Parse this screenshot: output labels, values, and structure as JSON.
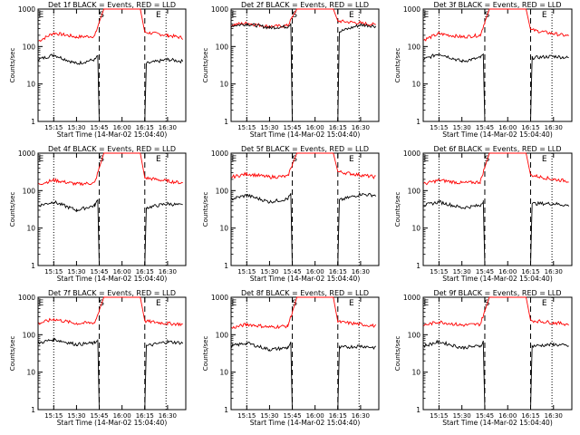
{
  "chart_data": [
    {
      "type": "line",
      "title": "Det 1f BLACK = Events, RED = LLD",
      "xlabel": "Start Time (14-Mar-02 15:04:40)",
      "ylabel": "Counts/sec",
      "yscale": "log",
      "ylim": [
        1,
        1000
      ],
      "y_ticks": [
        "1",
        "10",
        "100",
        "1000"
      ],
      "x_ticks": [
        "15:15",
        "15:30",
        "15:45",
        "16:00",
        "16:15",
        "16:30"
      ],
      "markers": [
        "E",
        "S",
        "E"
      ],
      "series": [
        {
          "color": "#ff0000",
          "x": [
            "15:05",
            "15:15",
            "15:30",
            "15:42",
            "15:45",
            "15:48",
            "16:12",
            "16:15",
            "16:30",
            "16:40"
          ],
          "y": [
            140,
            230,
            180,
            190,
            450,
            1000,
            1000,
            240,
            200,
            170
          ]
        },
        {
          "color": "#000000",
          "x": [
            "15:05",
            "15:15",
            "15:30",
            "15:42",
            "15:44",
            "15:45",
            "16:15",
            "16:16",
            "16:30",
            "16:40"
          ],
          "y": [
            45,
            60,
            35,
            45,
            55,
            1,
            1,
            35,
            45,
            40
          ]
        }
      ]
    },
    {
      "type": "line",
      "title": "Det 2f BLACK = Events, RED = LLD",
      "xlabel": "Start Time (14-Mar-02 15:04:40)",
      "ylabel": "Counts/sec",
      "yscale": "log",
      "ylim": [
        1,
        1000
      ],
      "y_ticks": [
        "1",
        "10",
        "100",
        "1000"
      ],
      "x_ticks": [
        "15:15",
        "15:30",
        "15:45",
        "16:00",
        "16:15",
        "16:30"
      ],
      "markers": [
        "E",
        "S",
        "E"
      ],
      "series": [
        {
          "color": "#ff0000",
          "x": [
            "15:05",
            "15:15",
            "15:30",
            "15:42",
            "15:45",
            "15:48",
            "16:12",
            "16:15",
            "16:30",
            "16:40"
          ],
          "y": [
            380,
            420,
            340,
            360,
            600,
            1000,
            1000,
            480,
            420,
            380
          ]
        },
        {
          "color": "#000000",
          "x": [
            "15:05",
            "15:15",
            "15:30",
            "15:42",
            "15:44",
            "15:45",
            "16:15",
            "16:16",
            "16:30",
            "16:40"
          ],
          "y": [
            360,
            400,
            320,
            340,
            420,
            1,
            1,
            250,
            380,
            350
          ]
        }
      ]
    },
    {
      "type": "line",
      "title": "Det 3f BLACK = Events, RED = LLD",
      "xlabel": "Start Time (14-Mar-02 15:04:40)",
      "ylabel": "Counts/sec",
      "yscale": "log",
      "ylim": [
        1,
        1000
      ],
      "y_ticks": [
        "1",
        "10",
        "100",
        "1000"
      ],
      "x_ticks": [
        "15:15",
        "15:30",
        "15:45",
        "16:00",
        "16:15",
        "16:30"
      ],
      "markers": [
        "E",
        "S",
        "E"
      ],
      "series": [
        {
          "color": "#ff0000",
          "x": [
            "15:05",
            "15:15",
            "15:30",
            "15:42",
            "15:45",
            "15:48",
            "16:12",
            "16:15",
            "16:30",
            "16:40"
          ],
          "y": [
            150,
            220,
            180,
            200,
            450,
            1000,
            1000,
            280,
            220,
            190
          ]
        },
        {
          "color": "#000000",
          "x": [
            "15:05",
            "15:15",
            "15:30",
            "15:42",
            "15:44",
            "15:45",
            "16:15",
            "16:16",
            "16:30",
            "16:40"
          ],
          "y": [
            45,
            65,
            40,
            50,
            60,
            1,
            1,
            50,
            55,
            50
          ]
        }
      ]
    },
    {
      "type": "line",
      "title": "Det 4f BLACK = Events, RED = LLD",
      "xlabel": "Start Time (14-Mar-02 15:04:40)",
      "ylabel": "Counts/sec",
      "yscale": "log",
      "ylim": [
        1,
        1000
      ],
      "y_ticks": [
        "1",
        "10",
        "100",
        "1000"
      ],
      "x_ticks": [
        "15:15",
        "15:30",
        "15:45",
        "16:00",
        "16:15",
        "16:30"
      ],
      "markers": [
        "E",
        "S",
        "E"
      ],
      "series": [
        {
          "color": "#ff0000",
          "x": [
            "15:05",
            "15:15",
            "15:30",
            "15:42",
            "15:45",
            "15:48",
            "16:12",
            "16:15",
            "16:30",
            "16:40"
          ],
          "y": [
            150,
            190,
            150,
            160,
            400,
            1000,
            1000,
            220,
            180,
            160
          ]
        },
        {
          "color": "#000000",
          "x": [
            "15:05",
            "15:15",
            "15:30",
            "15:42",
            "15:44",
            "15:45",
            "16:15",
            "16:16",
            "16:30",
            "16:40"
          ],
          "y": [
            40,
            50,
            30,
            40,
            55,
            1,
            1,
            35,
            45,
            40
          ]
        }
      ]
    },
    {
      "type": "line",
      "title": "Det 5f BLACK = Events, RED = LLD",
      "xlabel": "Start Time (14-Mar-02 15:04:40)",
      "ylabel": "Counts/sec",
      "yscale": "log",
      "ylim": [
        1,
        1000
      ],
      "y_ticks": [
        "1",
        "10",
        "100",
        "1000"
      ],
      "x_ticks": [
        "15:15",
        "15:30",
        "15:45",
        "16:00",
        "16:15",
        "16:30"
      ],
      "markers": [
        "E",
        "S",
        "E"
      ],
      "series": [
        {
          "color": "#ff0000",
          "x": [
            "15:05",
            "15:15",
            "15:30",
            "15:42",
            "15:45",
            "15:48",
            "16:12",
            "16:15",
            "16:30",
            "16:40"
          ],
          "y": [
            230,
            280,
            230,
            240,
            500,
            1000,
            1000,
            320,
            260,
            230
          ]
        },
        {
          "color": "#000000",
          "x": [
            "15:05",
            "15:15",
            "15:30",
            "15:42",
            "15:44",
            "15:45",
            "16:15",
            "16:16",
            "16:30",
            "16:40"
          ],
          "y": [
            60,
            75,
            50,
            60,
            80,
            1,
            1,
            55,
            80,
            75
          ]
        }
      ]
    },
    {
      "type": "line",
      "title": "Det 6f BLACK = Events, RED = LLD",
      "xlabel": "Start Time (14-Mar-02 15:04:40)",
      "ylabel": "Counts/sec",
      "yscale": "log",
      "ylim": [
        1,
        1000
      ],
      "y_ticks": [
        "1",
        "10",
        "100",
        "1000"
      ],
      "x_ticks": [
        "15:15",
        "15:30",
        "15:45",
        "16:00",
        "16:15",
        "16:30"
      ],
      "markers": [
        "E",
        "S",
        "E"
      ],
      "series": [
        {
          "color": "#ff0000",
          "x": [
            "15:05",
            "15:15",
            "15:30",
            "15:42",
            "15:45",
            "15:48",
            "16:12",
            "16:15",
            "16:30",
            "16:40"
          ],
          "y": [
            150,
            190,
            160,
            170,
            420,
            1000,
            1000,
            260,
            200,
            180
          ]
        },
        {
          "color": "#000000",
          "x": [
            "15:05",
            "15:15",
            "15:30",
            "15:42",
            "15:44",
            "15:45",
            "16:15",
            "16:16",
            "16:30",
            "16:40"
          ],
          "y": [
            40,
            50,
            35,
            40,
            55,
            1,
            1,
            45,
            45,
            40
          ]
        }
      ]
    },
    {
      "type": "line",
      "title": "Det 7f BLACK = Events, RED = LLD",
      "xlabel": "Start Time (14-Mar-02 15:04:40)",
      "ylabel": "Counts/sec",
      "yscale": "log",
      "ylim": [
        1,
        1000
      ],
      "y_ticks": [
        "1",
        "10",
        "100",
        "1000"
      ],
      "x_ticks": [
        "15:15",
        "15:30",
        "15:45",
        "16:00",
        "16:15",
        "16:30"
      ],
      "markers": [
        "E",
        "S",
        "E"
      ],
      "series": [
        {
          "color": "#ff0000",
          "x": [
            "15:05",
            "15:15",
            "15:30",
            "15:42",
            "15:45",
            "15:48",
            "16:12",
            "16:15",
            "16:30",
            "16:40"
          ],
          "y": [
            200,
            260,
            200,
            210,
            450,
            1000,
            1000,
            230,
            200,
            190
          ]
        },
        {
          "color": "#000000",
          "x": [
            "15:05",
            "15:15",
            "15:30",
            "15:42",
            "15:44",
            "15:45",
            "16:15",
            "16:16",
            "16:30",
            "16:40"
          ],
          "y": [
            60,
            75,
            55,
            60,
            75,
            1,
            1,
            50,
            65,
            60
          ]
        }
      ]
    },
    {
      "type": "line",
      "title": "Det 8f BLACK = Events, RED = LLD",
      "xlabel": "Start Time (14-Mar-02 15:04:40)",
      "ylabel": "Counts/sec",
      "yscale": "log",
      "ylim": [
        1,
        1000
      ],
      "y_ticks": [
        "1",
        "10",
        "100",
        "1000"
      ],
      "x_ticks": [
        "15:15",
        "15:30",
        "15:45",
        "16:00",
        "16:15",
        "16:30"
      ],
      "markers": [
        "E",
        "S",
        "E"
      ],
      "series": [
        {
          "color": "#ff0000",
          "x": [
            "15:05",
            "15:15",
            "15:30",
            "15:42",
            "15:45",
            "15:48",
            "16:12",
            "16:15",
            "16:30",
            "16:40"
          ],
          "y": [
            150,
            190,
            160,
            170,
            400,
            1000,
            1000,
            220,
            190,
            170
          ]
        },
        {
          "color": "#000000",
          "x": [
            "15:05",
            "15:15",
            "15:30",
            "15:42",
            "15:44",
            "15:45",
            "16:15",
            "16:16",
            "16:30",
            "16:40"
          ],
          "y": [
            50,
            60,
            40,
            45,
            60,
            1,
            1,
            45,
            50,
            45
          ]
        }
      ]
    },
    {
      "type": "line",
      "title": "Det 9f BLACK = Events, RED = LLD",
      "xlabel": "Start Time (14-Mar-02 15:04:40)",
      "ylabel": "Counts/sec",
      "yscale": "log",
      "ylim": [
        1,
        1000
      ],
      "y_ticks": [
        "1",
        "10",
        "100",
        "1000"
      ],
      "x_ticks": [
        "15:15",
        "15:30",
        "15:45",
        "16:00",
        "16:15",
        "16:30"
      ],
      "markers": [
        "E",
        "S",
        "E"
      ],
      "series": [
        {
          "color": "#ff0000",
          "x": [
            "15:05",
            "15:15",
            "15:30",
            "15:42",
            "15:45",
            "15:48",
            "16:12",
            "16:15",
            "16:30",
            "16:40"
          ],
          "y": [
            180,
            220,
            180,
            190,
            430,
            1000,
            1000,
            240,
            210,
            190
          ]
        },
        {
          "color": "#000000",
          "x": [
            "15:05",
            "15:15",
            "15:30",
            "15:42",
            "15:44",
            "15:45",
            "16:15",
            "16:16",
            "16:30",
            "16:40"
          ],
          "y": [
            50,
            65,
            45,
            50,
            65,
            1,
            1,
            50,
            55,
            50
          ]
        }
      ]
    }
  ]
}
